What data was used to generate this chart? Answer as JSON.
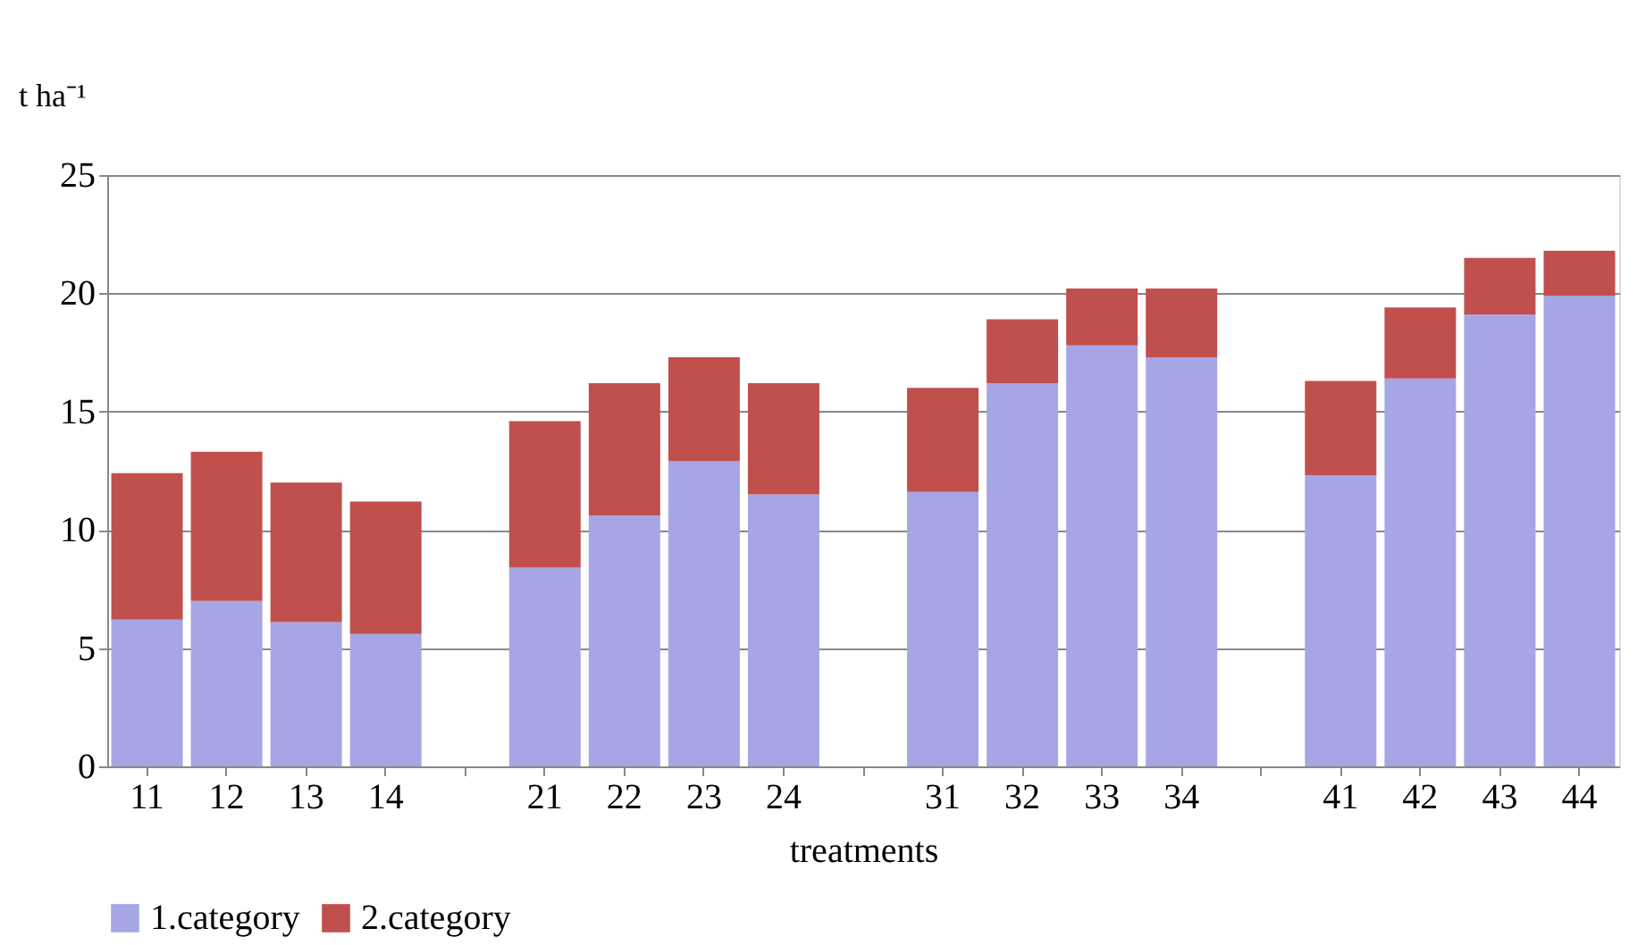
{
  "chart_data": {
    "type": "bar",
    "stacked": true,
    "xlabel": "treatments",
    "ylabel": "t ha⁻¹",
    "categories": [
      "11",
      "12",
      "13",
      "14",
      null,
      "21",
      "22",
      "23",
      "24",
      null,
      "31",
      "32",
      "33",
      "34",
      null,
      "41",
      "42",
      "43",
      "44"
    ],
    "series": [
      {
        "name": "1.category",
        "color": "#a6a6e4",
        "values": [
          6.2,
          7.0,
          6.1,
          5.6,
          null,
          8.4,
          10.6,
          12.9,
          11.5,
          null,
          11.6,
          16.2,
          17.8,
          17.3,
          null,
          12.3,
          16.4,
          19.1,
          19.9
        ]
      },
      {
        "name": "2.category",
        "color": "#c0504d",
        "values": [
          6.2,
          6.3,
          5.9,
          5.6,
          null,
          6.2,
          5.6,
          4.4,
          4.7,
          null,
          4.4,
          2.7,
          2.4,
          2.9,
          null,
          4.0,
          3.0,
          2.4,
          1.9
        ]
      }
    ],
    "ylim": [
      0,
      25
    ],
    "yticks": [
      0,
      5,
      10,
      15,
      20,
      25
    ],
    "grid": "y",
    "legend": "bottom"
  }
}
